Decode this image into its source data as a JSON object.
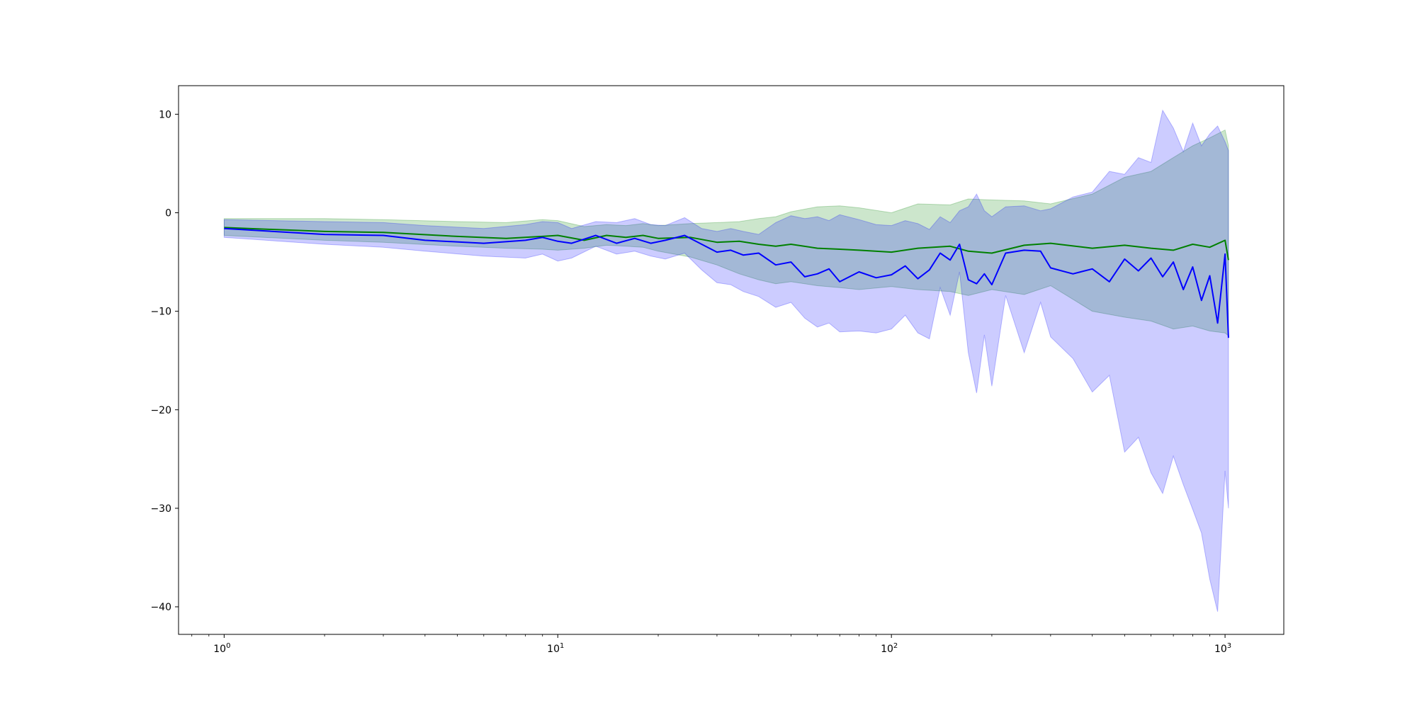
{
  "chart_data": {
    "type": "line",
    "title": "",
    "xlabel": "",
    "ylabel": "",
    "x_scale": "log",
    "xlim": [
      0.73,
      1500
    ],
    "ylim": [
      -42.8,
      12.9
    ],
    "grid": false,
    "x_ticks": [
      {
        "value": 1,
        "base": "10",
        "exp": "0"
      },
      {
        "value": 10,
        "base": "10",
        "exp": "1"
      },
      {
        "value": 100,
        "base": "10",
        "exp": "2"
      },
      {
        "value": 1000,
        "base": "10",
        "exp": "3"
      }
    ],
    "y_ticks": [
      {
        "value": 10,
        "label": "10"
      },
      {
        "value": 0,
        "label": "0"
      },
      {
        "value": -10,
        "label": "−10"
      },
      {
        "value": -20,
        "label": "−20"
      },
      {
        "value": -30,
        "label": "−30"
      },
      {
        "value": -40,
        "label": "−40"
      }
    ],
    "series": [
      {
        "color": "#008000",
        "band_color": "#008000",
        "x": [
          1,
          2,
          3,
          5,
          7,
          9,
          10,
          12,
          14,
          16,
          18,
          20,
          25,
          30,
          35,
          40,
          45,
          50,
          60,
          70,
          80,
          100,
          120,
          150,
          170,
          200,
          250,
          300,
          400,
          500,
          600,
          700,
          800,
          900,
          1000,
          1024
        ],
        "y": [
          -1.5,
          -1.9,
          -2.0,
          -2.4,
          -2.6,
          -2.4,
          -2.3,
          -2.8,
          -2.3,
          -2.5,
          -2.3,
          -2.6,
          -2.5,
          -3.0,
          -2.9,
          -3.2,
          -3.4,
          -3.2,
          -3.6,
          -3.7,
          -3.8,
          -4.0,
          -3.6,
          -3.4,
          -3.9,
          -4.1,
          -3.3,
          -3.1,
          -3.6,
          -3.3,
          -3.6,
          -3.8,
          -3.2,
          -3.5,
          -2.8,
          -4.8
        ],
        "lower": [
          -2.3,
          -2.8,
          -3.0,
          -3.4,
          -3.6,
          -3.7,
          -3.8,
          -3.6,
          -3.3,
          -3.4,
          -3.5,
          -3.9,
          -4.5,
          -5.3,
          -6.2,
          -6.8,
          -7.2,
          -7.0,
          -7.4,
          -7.6,
          -7.8,
          -7.5,
          -7.8,
          -8.0,
          -8.4,
          -7.8,
          -8.3,
          -7.4,
          -10.0,
          -10.6,
          -11.0,
          -11.8,
          -11.5,
          -12.0,
          -12.2,
          -12.5
        ],
        "upper": [
          -0.6,
          -0.6,
          -0.7,
          -0.9,
          -1.0,
          -0.7,
          -0.8,
          -1.4,
          -1.2,
          -1.3,
          -1.1,
          -1.3,
          -1.1,
          -1.0,
          -0.9,
          -0.6,
          -0.4,
          0.1,
          0.6,
          0.7,
          0.5,
          0.0,
          0.9,
          0.8,
          1.4,
          1.3,
          1.2,
          0.9,
          1.9,
          3.6,
          4.2,
          5.6,
          6.8,
          7.6,
          8.4,
          6.8
        ]
      },
      {
        "color": "#0000ff",
        "band_color": "#0000ff",
        "x": [
          1,
          2,
          3,
          4,
          6,
          8,
          9,
          10,
          11,
          13,
          15,
          17,
          19,
          21,
          24,
          27,
          30,
          33,
          36,
          40,
          45,
          50,
          55,
          60,
          65,
          70,
          80,
          90,
          100,
          110,
          120,
          130,
          140,
          150,
          160,
          170,
          180,
          190,
          200,
          220,
          250,
          280,
          300,
          350,
          400,
          450,
          500,
          550,
          600,
          650,
          700,
          750,
          800,
          850,
          900,
          950,
          1000,
          1024
        ],
        "y": [
          -1.6,
          -2.2,
          -2.3,
          -2.8,
          -3.1,
          -2.8,
          -2.5,
          -2.9,
          -3.1,
          -2.3,
          -3.1,
          -2.6,
          -3.1,
          -2.8,
          -2.3,
          -3.2,
          -4.0,
          -3.8,
          -4.3,
          -4.1,
          -5.3,
          -5.0,
          -6.5,
          -6.2,
          -5.7,
          -7.0,
          -6.0,
          -6.6,
          -6.3,
          -5.4,
          -6.7,
          -5.8,
          -4.1,
          -4.8,
          -3.2,
          -6.8,
          -7.2,
          -6.2,
          -7.3,
          -4.1,
          -3.8,
          -3.9,
          -5.6,
          -6.2,
          -5.7,
          -7.0,
          -4.7,
          -5.9,
          -4.6,
          -6.5,
          -5.0,
          -7.8,
          -5.5,
          -8.9,
          -6.4,
          -11.2,
          -4.2,
          -12.7
        ],
        "lower": [
          -2.5,
          -3.2,
          -3.5,
          -3.9,
          -4.4,
          -4.6,
          -4.2,
          -4.9,
          -4.6,
          -3.4,
          -4.2,
          -3.9,
          -4.4,
          -4.7,
          -4.1,
          -5.8,
          -7.1,
          -7.3,
          -8.0,
          -8.5,
          -9.6,
          -9.1,
          -10.7,
          -11.6,
          -11.2,
          -12.1,
          -12.0,
          -12.2,
          -11.8,
          -10.4,
          -12.2,
          -12.8,
          -7.6,
          -10.4,
          -6.0,
          -14.2,
          -18.3,
          -12.4,
          -17.6,
          -8.4,
          -14.2,
          -9.1,
          -12.6,
          -14.8,
          -18.2,
          -16.5,
          -24.3,
          -22.8,
          -26.4,
          -28.5,
          -24.7,
          -27.6,
          -30.1,
          -32.5,
          -37.2,
          -40.5,
          -26.2,
          -30.0
        ],
        "upper": [
          -0.7,
          -0.9,
          -1.0,
          -1.3,
          -1.6,
          -1.2,
          -0.9,
          -1.0,
          -1.6,
          -0.9,
          -1.0,
          -0.6,
          -1.2,
          -1.3,
          -0.5,
          -1.6,
          -1.9,
          -1.6,
          -1.9,
          -2.2,
          -1.0,
          -0.3,
          -0.6,
          -0.4,
          -0.8,
          -0.2,
          -0.7,
          -1.2,
          -1.3,
          -0.8,
          -1.1,
          -1.7,
          -0.4,
          -1.0,
          0.2,
          0.6,
          1.9,
          0.2,
          -0.4,
          0.6,
          0.7,
          0.2,
          0.4,
          1.6,
          2.1,
          4.2,
          3.9,
          5.6,
          5.1,
          10.4,
          8.6,
          6.2,
          9.1,
          6.8,
          8.0,
          8.8,
          7.2,
          6.3
        ]
      }
    ]
  }
}
